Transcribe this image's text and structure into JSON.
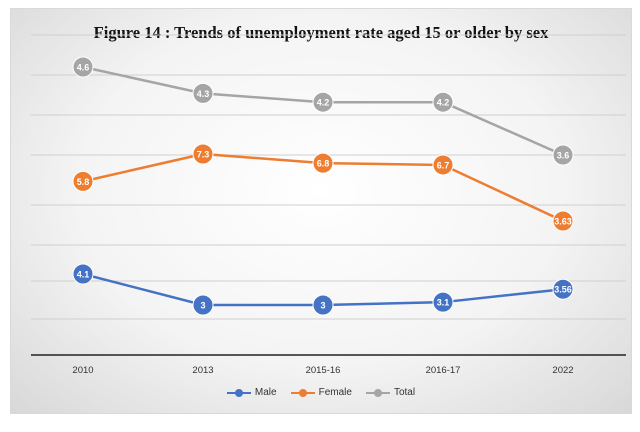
{
  "chart_data": {
    "type": "line",
    "title": "Figure 14 : Trends of unemployment rate aged 15 or older by sex",
    "categories": [
      "2010",
      "2013",
      "2015-16",
      "2016-17",
      "2022"
    ],
    "series": [
      {
        "name": "Male",
        "values": [
          4.1,
          3,
          3,
          3.1,
          3.56
        ],
        "labels": [
          "4.1",
          "3",
          "3",
          "3.1",
          "3.56"
        ],
        "color": "#4472c4"
      },
      {
        "name": "Female",
        "values": [
          5.8,
          7.3,
          6.8,
          6.7,
          3.63
        ],
        "labels": [
          "5.8",
          "7.3",
          "6.8",
          "6.7",
          "3.63"
        ],
        "color": "#ed7d31"
      },
      {
        "name": "Total",
        "values": [
          4.6,
          4.3,
          4.2,
          4.2,
          3.6
        ],
        "labels": [
          "4.6",
          "4.3",
          "4.2",
          "4.2",
          "3.6"
        ],
        "color": "#a5a5a5"
      }
    ],
    "grid": true,
    "legend": "bottom"
  }
}
